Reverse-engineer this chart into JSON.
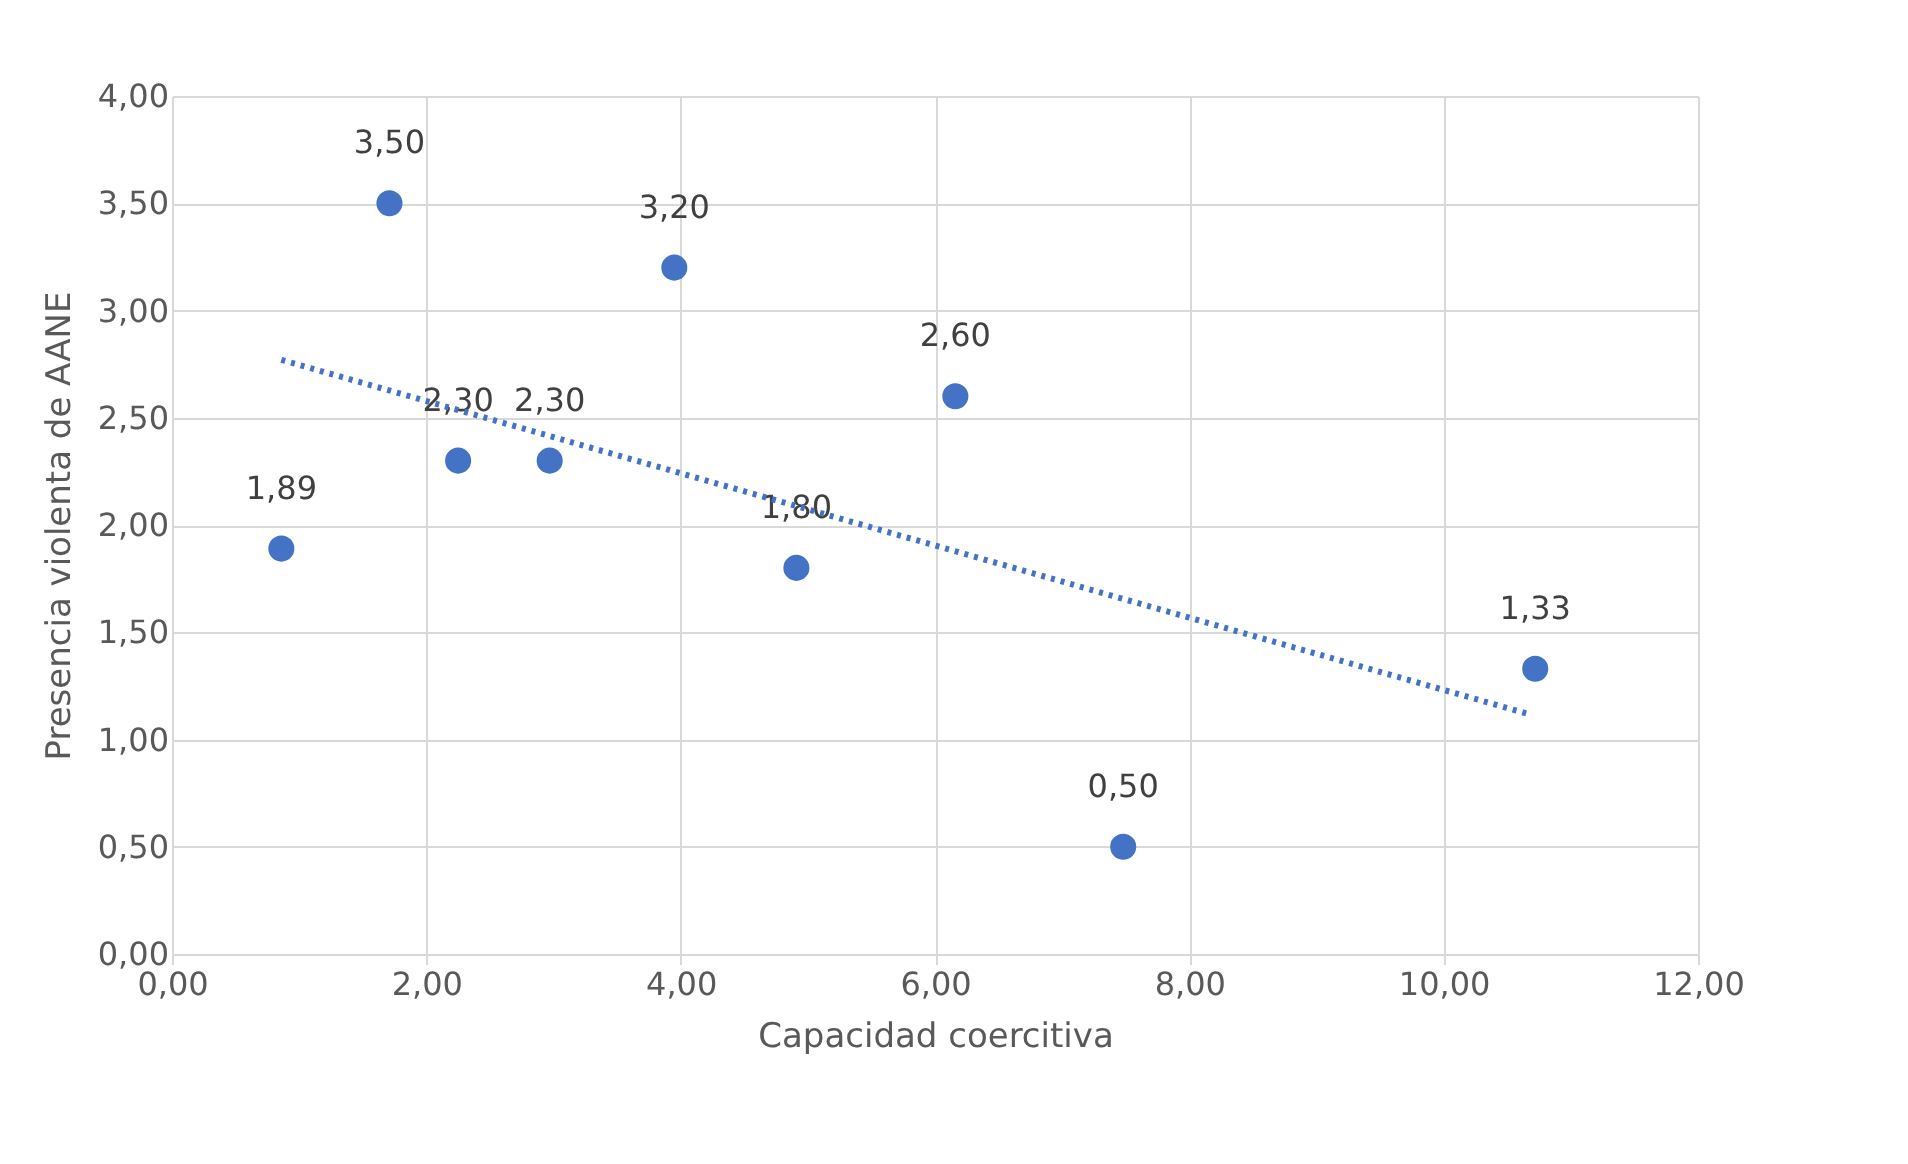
{
  "chart_data": {
    "type": "scatter",
    "xlabel": "Capacidad coercitiva",
    "ylabel": "Presencia violenta de AANE",
    "series": [
      {
        "color": "#4472c4",
        "marker": "circle",
        "x": [
          0.86,
          1.71,
          2.25,
          2.97,
          3.95,
          4.91,
          6.16,
          7.48,
          10.72
        ],
        "values": [
          1.89,
          3.5,
          2.3,
          2.3,
          3.2,
          1.8,
          2.6,
          0.5,
          1.33
        ],
        "value_labels": [
          "1,89",
          "3,50",
          "2,30",
          "2,30",
          "3,20",
          "1,80",
          "2,60",
          "0,50",
          "1,33"
        ]
      },
      {
        "type": "line",
        "color": "#4472c4",
        "line_style": "dotted",
        "x": [
          0.86,
          10.66
        ],
        "values": [
          2.77,
          1.12
        ]
      }
    ],
    "grid": true,
    "xlim": [
      0,
      12
    ],
    "xticks": [
      {
        "value": 0,
        "label": "0,00"
      },
      {
        "value": 2,
        "label": "2,00"
      },
      {
        "value": 4,
        "label": "4,00"
      },
      {
        "value": 6,
        "label": "6,00"
      },
      {
        "value": 8,
        "label": "8,00"
      },
      {
        "value": 10,
        "label": "10,00"
      },
      {
        "value": 12,
        "label": "12,00"
      }
    ],
    "ylim": [
      0,
      4
    ],
    "yticks": [
      {
        "value": 0,
        "label": "0,00"
      },
      {
        "value": 0.5,
        "label": "0,50"
      },
      {
        "value": 1,
        "label": "1,00"
      },
      {
        "value": 1.5,
        "label": "1,50"
      },
      {
        "value": 2,
        "label": "2,00"
      },
      {
        "value": 2.5,
        "label": "2,50"
      },
      {
        "value": 3,
        "label": "3,00"
      },
      {
        "value": 3.5,
        "label": "3,50"
      },
      {
        "value": 4,
        "label": "4,00"
      }
    ]
  }
}
